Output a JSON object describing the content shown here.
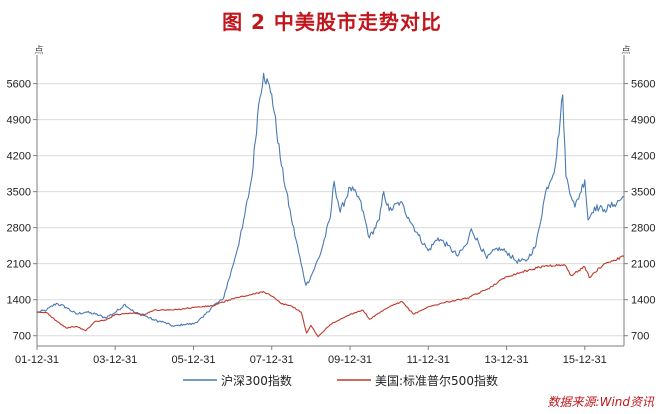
{
  "title": "图 2 中美股市走势对比",
  "source": "数据来源:Wind资讯",
  "colors": {
    "title": "#c0161c",
    "series_csi300": "#4a7ab5",
    "series_sp500": "#c0392b",
    "axis": "#7f7f7f",
    "grid": "#dcdcdc"
  },
  "chart_data": {
    "type": "line",
    "ylim": [
      500,
      6000
    ],
    "yticks": [
      700,
      1400,
      2100,
      2800,
      3500,
      4200,
      4900,
      5600
    ],
    "ytick_labels": [
      "700",
      "1400",
      "2100",
      "2800",
      "3500",
      "4200",
      "4900",
      "5600"
    ],
    "axis_top_marks": [
      "点",
      "点"
    ],
    "xlim": [
      "2001-12-31",
      "2016-12-31"
    ],
    "xticks": [
      "2001-12-31",
      "2003-12-31",
      "2005-12-31",
      "2007-12-31",
      "2009-12-31",
      "2011-12-31",
      "2013-12-31",
      "2015-12-31"
    ],
    "xtick_labels": [
      "01-12-31",
      "03-12-31",
      "05-12-31",
      "07-12-31",
      "09-12-31",
      "11-12-31",
      "13-12-31",
      "15-12-31"
    ],
    "grid": "horizontal",
    "legend_position": "bottom",
    "series": [
      {
        "name": "沪深300指数",
        "points": [
          [
            "2001-12-31",
            1150
          ],
          [
            "2002-03-31",
            1200
          ],
          [
            "2002-06-30",
            1330
          ],
          [
            "2002-09-30",
            1250
          ],
          [
            "2002-12-31",
            1120
          ],
          [
            "2003-03-31",
            1160
          ],
          [
            "2003-06-30",
            1120
          ],
          [
            "2003-09-30",
            1050
          ],
          [
            "2003-12-31",
            1150
          ],
          [
            "2004-03-31",
            1310
          ],
          [
            "2004-06-30",
            1150
          ],
          [
            "2004-09-30",
            1090
          ],
          [
            "2004-12-31",
            1000
          ],
          [
            "2005-03-31",
            960
          ],
          [
            "2005-06-30",
            880
          ],
          [
            "2005-09-30",
            920
          ],
          [
            "2005-12-31",
            930
          ],
          [
            "2006-03-31",
            1060
          ],
          [
            "2006-06-30",
            1280
          ],
          [
            "2006-09-30",
            1400
          ],
          [
            "2006-12-31",
            2040
          ],
          [
            "2007-03-31",
            2780
          ],
          [
            "2007-06-30",
            3800
          ],
          [
            "2007-08-31",
            5200
          ],
          [
            "2007-10-16",
            5800
          ],
          [
            "2007-12-31",
            5400
          ],
          [
            "2008-03-31",
            4000
          ],
          [
            "2008-06-30",
            3000
          ],
          [
            "2008-09-30",
            2100
          ],
          [
            "2008-11-15",
            1680
          ],
          [
            "2008-12-31",
            1850
          ],
          [
            "2009-03-31",
            2300
          ],
          [
            "2009-06-30",
            3000
          ],
          [
            "2009-08-04",
            3700
          ],
          [
            "2009-09-30",
            3100
          ],
          [
            "2009-12-31",
            3580
          ],
          [
            "2010-03-31",
            3350
          ],
          [
            "2010-06-30",
            2600
          ],
          [
            "2010-09-30",
            2950
          ],
          [
            "2010-11-10",
            3500
          ],
          [
            "2010-12-31",
            3130
          ],
          [
            "2011-04-15",
            3300
          ],
          [
            "2011-06-30",
            3000
          ],
          [
            "2011-09-30",
            2650
          ],
          [
            "2011-12-31",
            2350
          ],
          [
            "2012-03-31",
            2600
          ],
          [
            "2012-06-30",
            2450
          ],
          [
            "2012-09-30",
            2250
          ],
          [
            "2012-12-31",
            2500
          ],
          [
            "2013-02-05",
            2780
          ],
          [
            "2013-06-30",
            2200
          ],
          [
            "2013-09-30",
            2400
          ],
          [
            "2013-12-31",
            2330
          ],
          [
            "2014-03-31",
            2150
          ],
          [
            "2014-06-30",
            2150
          ],
          [
            "2014-09-30",
            2450
          ],
          [
            "2014-12-31",
            3500
          ],
          [
            "2015-03-31",
            4000
          ],
          [
            "2015-06-08",
            5380
          ],
          [
            "2015-07-08",
            3800
          ],
          [
            "2015-09-30",
            3200
          ],
          [
            "2015-12-31",
            3730
          ],
          [
            "2016-01-31",
            2950
          ],
          [
            "2016-03-31",
            3200
          ],
          [
            "2016-06-30",
            3150
          ],
          [
            "2016-09-30",
            3250
          ],
          [
            "2016-12-31",
            3400
          ]
        ]
      },
      {
        "name": "美国:标准普尔500指数",
        "points": [
          [
            "2001-12-31",
            1150
          ],
          [
            "2002-03-31",
            1150
          ],
          [
            "2002-06-30",
            990
          ],
          [
            "2002-09-30",
            850
          ],
          [
            "2002-12-31",
            880
          ],
          [
            "2003-03-31",
            800
          ],
          [
            "2003-06-30",
            980
          ],
          [
            "2003-09-30",
            1000
          ],
          [
            "2003-12-31",
            1110
          ],
          [
            "2004-03-31",
            1130
          ],
          [
            "2004-06-30",
            1140
          ],
          [
            "2004-09-30",
            1110
          ],
          [
            "2004-12-31",
            1200
          ],
          [
            "2005-06-30",
            1200
          ],
          [
            "2005-12-31",
            1250
          ],
          [
            "2006-06-30",
            1280
          ],
          [
            "2006-12-31",
            1420
          ],
          [
            "2007-06-30",
            1500
          ],
          [
            "2007-10-15",
            1560
          ],
          [
            "2007-12-31",
            1470
          ],
          [
            "2008-03-31",
            1320
          ],
          [
            "2008-06-30",
            1280
          ],
          [
            "2008-09-30",
            1160
          ],
          [
            "2008-11-20",
            750
          ],
          [
            "2008-12-31",
            900
          ],
          [
            "2009-03-09",
            680
          ],
          [
            "2009-06-30",
            920
          ],
          [
            "2009-12-31",
            1115
          ],
          [
            "2010-04-30",
            1200
          ],
          [
            "2010-07-01",
            1020
          ],
          [
            "2010-12-31",
            1260
          ],
          [
            "2011-04-30",
            1360
          ],
          [
            "2011-08-15",
            1120
          ],
          [
            "2011-12-31",
            1260
          ],
          [
            "2012-06-30",
            1360
          ],
          [
            "2012-12-31",
            1430
          ],
          [
            "2013-06-30",
            1600
          ],
          [
            "2013-12-31",
            1850
          ],
          [
            "2014-06-30",
            1960
          ],
          [
            "2014-12-31",
            2060
          ],
          [
            "2015-06-30",
            2070
          ],
          [
            "2015-08-25",
            1870
          ],
          [
            "2015-12-31",
            2040
          ],
          [
            "2016-02-11",
            1830
          ],
          [
            "2016-06-30",
            2100
          ],
          [
            "2016-09-30",
            2170
          ],
          [
            "2016-12-31",
            2240
          ]
        ]
      }
    ]
  }
}
